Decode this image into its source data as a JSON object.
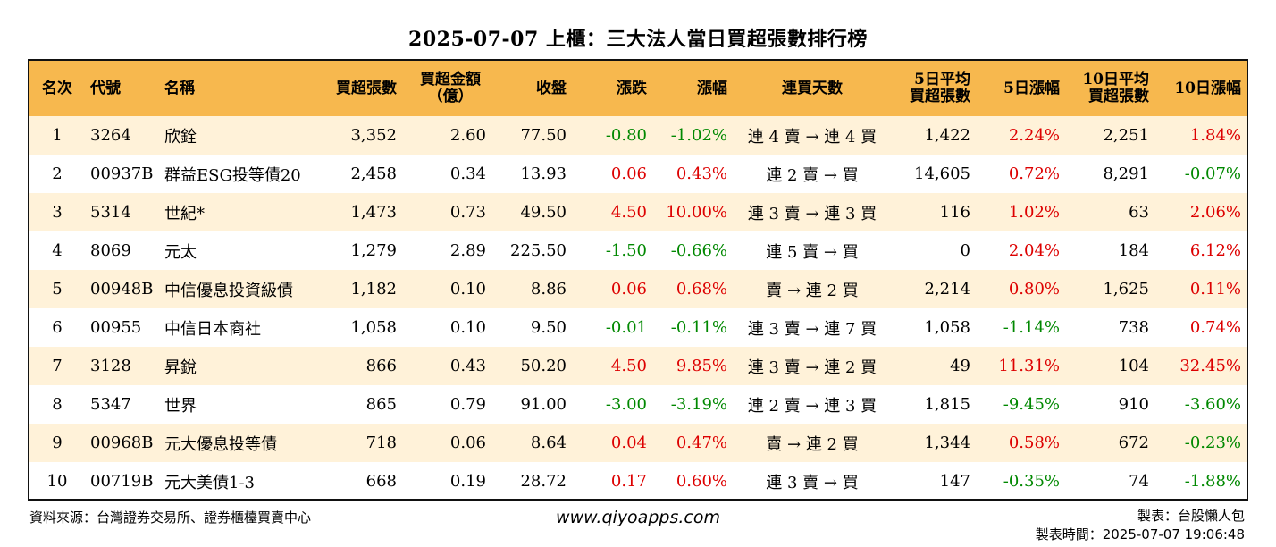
{
  "title": "2025-07-07 上櫃：三大法人當日買超張數排行榜",
  "headers": {
    "rank": "名次",
    "code": "代號",
    "name": "名稱",
    "net_buy_lots": "買超張數",
    "net_buy_amount_1": "買超金額",
    "net_buy_amount_2": "（億）",
    "close": "收盤",
    "change": "漲跌",
    "change_pct": "漲幅",
    "streak": "連買天數",
    "avg5_1": "5日平均",
    "avg5_2": "買超張數",
    "chg5": "5日漲幅",
    "avg10_1": "10日平均",
    "avg10_2": "買超張數",
    "chg10": "10日漲幅"
  },
  "rows": [
    {
      "rank": "1",
      "code": "3264",
      "name": "欣銓",
      "lots": "3,352",
      "amount": "2.60",
      "close": "77.50",
      "change": "-0.80",
      "pct": "-1.02%",
      "streak": "連 4 賣 → 連 4 買",
      "avg5": "1,422",
      "chg5": "2.24%",
      "avg10": "2,251",
      "chg10": "1.84%"
    },
    {
      "rank": "2",
      "code": "00937B",
      "name": "群益ESG投等債20",
      "lots": "2,458",
      "amount": "0.34",
      "close": "13.93",
      "change": "0.06",
      "pct": "0.43%",
      "streak": "連 2 賣 → 買",
      "avg5": "14,605",
      "chg5": "0.72%",
      "avg10": "8,291",
      "chg10": "-0.07%"
    },
    {
      "rank": "3",
      "code": "5314",
      "name": "世紀*",
      "lots": "1,473",
      "amount": "0.73",
      "close": "49.50",
      "change": "4.50",
      "pct": "10.00%",
      "streak": "連 3 賣 → 連 3 買",
      "avg5": "116",
      "chg5": "1.02%",
      "avg10": "63",
      "chg10": "2.06%"
    },
    {
      "rank": "4",
      "code": "8069",
      "name": "元太",
      "lots": "1,279",
      "amount": "2.89",
      "close": "225.50",
      "change": "-1.50",
      "pct": "-0.66%",
      "streak": "連 5 賣 → 買",
      "avg5": "0",
      "chg5": "2.04%",
      "avg10": "184",
      "chg10": "6.12%"
    },
    {
      "rank": "5",
      "code": "00948B",
      "name": "中信優息投資級債",
      "lots": "1,182",
      "amount": "0.10",
      "close": "8.86",
      "change": "0.06",
      "pct": "0.68%",
      "streak": "賣 → 連 2 買",
      "avg5": "2,214",
      "chg5": "0.80%",
      "avg10": "1,625",
      "chg10": "0.11%"
    },
    {
      "rank": "6",
      "code": "00955",
      "name": "中信日本商社",
      "lots": "1,058",
      "amount": "0.10",
      "close": "9.50",
      "change": "-0.01",
      "pct": "-0.11%",
      "streak": "連 3 賣 → 連 7 買",
      "avg5": "1,058",
      "chg5": "-1.14%",
      "avg10": "738",
      "chg10": "0.74%"
    },
    {
      "rank": "7",
      "code": "3128",
      "name": "昇銳",
      "lots": "866",
      "amount": "0.43",
      "close": "50.20",
      "change": "4.50",
      "pct": "9.85%",
      "streak": "連 3 賣 → 連 2 買",
      "avg5": "49",
      "chg5": "11.31%",
      "avg10": "104",
      "chg10": "32.45%"
    },
    {
      "rank": "8",
      "code": "5347",
      "name": "世界",
      "lots": "865",
      "amount": "0.79",
      "close": "91.00",
      "change": "-3.00",
      "pct": "-3.19%",
      "streak": "連 2 賣 → 連 3 買",
      "avg5": "1,815",
      "chg5": "-9.45%",
      "avg10": "910",
      "chg10": "-3.60%"
    },
    {
      "rank": "9",
      "code": "00968B",
      "name": "元大優息投等債",
      "lots": "718",
      "amount": "0.06",
      "close": "8.64",
      "change": "0.04",
      "pct": "0.47%",
      "streak": "賣 → 連 2 買",
      "avg5": "1,344",
      "chg5": "0.58%",
      "avg10": "672",
      "chg10": "-0.23%"
    },
    {
      "rank": "10",
      "code": "00719B",
      "name": "元大美債1-3",
      "lots": "668",
      "amount": "0.19",
      "close": "28.72",
      "change": "0.17",
      "pct": "0.60%",
      "streak": "連 3 賣 → 買",
      "avg5": "147",
      "chg5": "-0.35%",
      "avg10": "74",
      "chg10": "-1.88%"
    }
  ],
  "footer": {
    "source": "資料來源：台灣證券交易所、證券櫃檯買賣中心",
    "website": "www.qiyoapps.com",
    "author": "製表：台股懶人包",
    "time": "製表時間：2025-07-07 19:06:48"
  },
  "colors": {
    "header_bg": "#f7b84e",
    "stripe_bg": "#fff2d9",
    "up": "#dd0000",
    "down": "#008800"
  }
}
